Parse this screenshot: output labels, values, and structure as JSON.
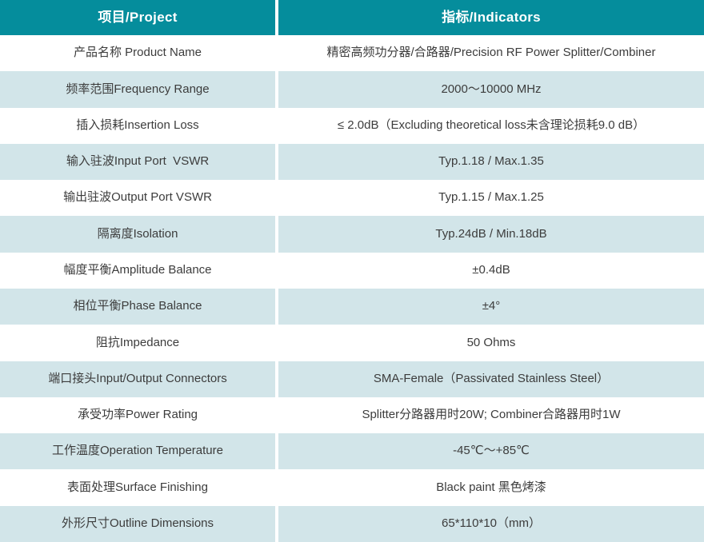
{
  "table": {
    "header": {
      "project_label": "项目/Project",
      "indicator_label": "指标/Indicators"
    },
    "rows": [
      {
        "project": "产品名称 Product Name",
        "indicator": "精密高频功分器/合路器/Precision RF Power Splitter/Combiner"
      },
      {
        "project": "频率范围Frequency Range",
        "indicator": "2000～10000 MHz"
      },
      {
        "project": "插入损耗Insertion Loss",
        "indicator": "≤ 2.0dB（Excluding theoretical loss未含理论损耗9.0 dB）"
      },
      {
        "project": "输入驻波Input Port  VSWR",
        "indicator": "Typ.1.18 / Max.1.35"
      },
      {
        "project": "输出驻波Output Port VSWR",
        "indicator": "Typ.1.15 / Max.1.25"
      },
      {
        "project": "隔离度Isolation",
        "indicator": "Typ.24dB / Min.18dB"
      },
      {
        "project": "幅度平衡Amplitude Balance",
        "indicator": "±0.4dB"
      },
      {
        "project": "相位平衡Phase Balance",
        "indicator": "±4°"
      },
      {
        "project": "阻抗Impedance",
        "indicator": "50 Ohms"
      },
      {
        "project": "端口接头Input/Output Connectors",
        "indicator": "SMA-Female（Passivated Stainless Steel）"
      },
      {
        "project": "承受功率Power Rating",
        "indicator": "Splitter分路器用时20W; Combiner合路器用时1W"
      },
      {
        "project": "工作温度Operation Temperature",
        "indicator": "-45℃～+85℃"
      },
      {
        "project": "表面处理Surface Finishing",
        "indicator": "Black paint 黑色烤漆"
      },
      {
        "project": "外形尺寸Outline Dimensions",
        "indicator": "65*110*10（mm）"
      }
    ]
  },
  "colors": {
    "header_bg": "#058D9C",
    "header_text": "#FFFFFF",
    "row_bg": "#FFFFFF",
    "row_alt_bg": "#D2E5E9",
    "cell_text": "#3C3C3C",
    "divider": "#FFFFFF"
  }
}
